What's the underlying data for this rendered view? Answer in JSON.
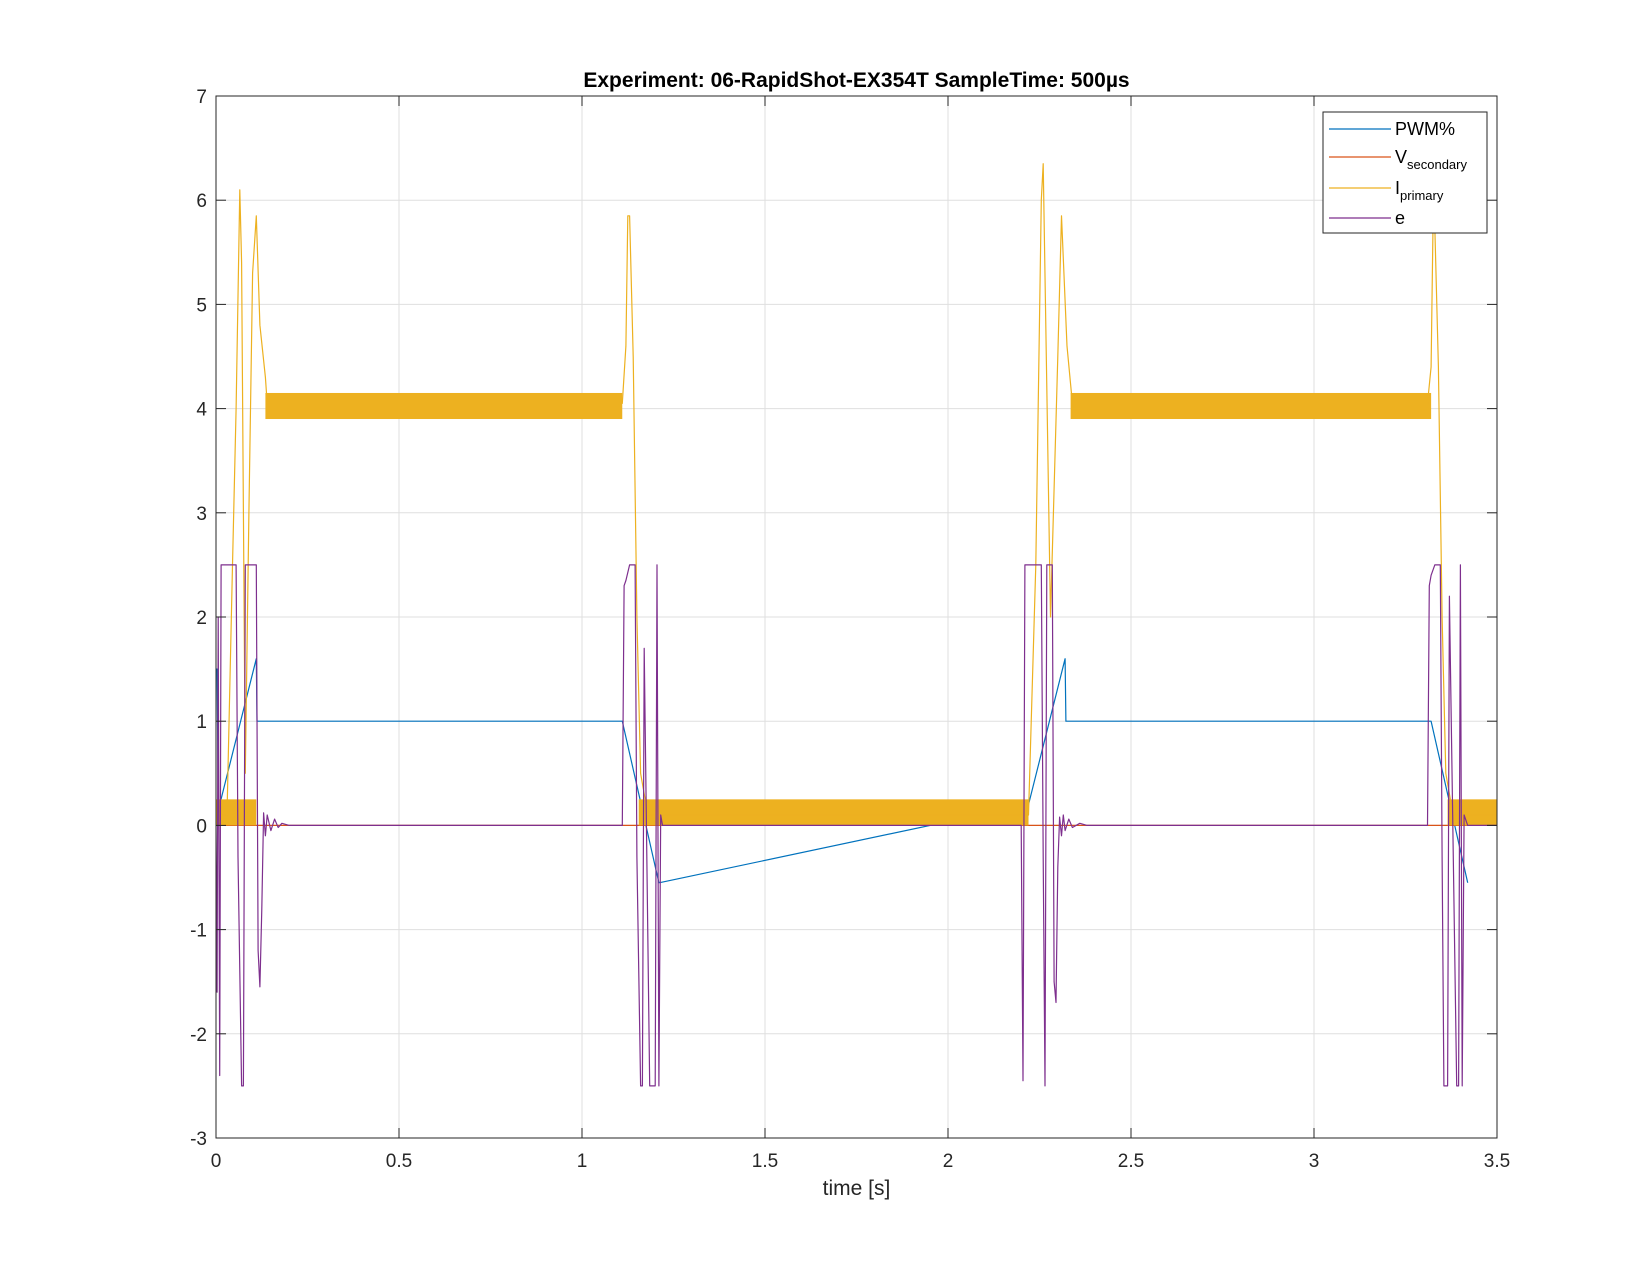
{
  "chart_data": {
    "type": "line",
    "title": "Experiment: 06-RapidShot-EX354T   SampleTime: 500µs",
    "xlabel": "time [s]",
    "ylabel": "",
    "xlim": [
      0,
      3.5
    ],
    "ylim": [
      -3,
      7
    ],
    "xticks": [
      0,
      0.5,
      1,
      1.5,
      2,
      2.5,
      3,
      3.5
    ],
    "xtick_labels": [
      "0",
      "0.5",
      "1",
      "1.5",
      "2",
      "2.5",
      "3",
      "3.5"
    ],
    "yticks": [
      -3,
      -2,
      -1,
      0,
      1,
      2,
      3,
      4,
      5,
      6,
      7
    ],
    "ytick_labels": [
      "-3",
      "-2",
      "-1",
      "0",
      "1",
      "2",
      "3",
      "4",
      "5",
      "6",
      "7"
    ],
    "grid": true,
    "legend_position": "top-right",
    "legend": [
      {
        "base": "PWM%",
        "sub": "",
        "color": "#0072BD"
      },
      {
        "base": "V",
        "sub": "secondary",
        "color": "#D95319"
      },
      {
        "base": "I",
        "sub": "primary",
        "color": "#EDB120"
      },
      {
        "base": "e",
        "sub": "",
        "color": "#7E2F8E"
      }
    ],
    "series": [
      {
        "name": "PWM%",
        "color": "#0072BD",
        "x": [
          0,
          0.003,
          0.006,
          0.01,
          0.11,
          0.112,
          1.11,
          1.21,
          1.212,
          2.22,
          2.32,
          2.322,
          3.32,
          3.42
        ],
        "y": [
          1.5,
          1.5,
          0.2,
          0.2,
          1.6,
          1.0,
          1.0,
          -0.55,
          -0.55,
          0.2,
          1.6,
          1.0,
          1.0,
          -0.55
        ]
      },
      {
        "name": "V_secondary",
        "color": "#D95319",
        "x": [
          0,
          3.5
        ],
        "y": [
          0,
          0
        ]
      },
      {
        "name": "I_primary",
        "color": "#EDB120",
        "x": [
          0,
          0.03,
          0.045,
          0.055,
          0.065,
          0.07,
          0.08,
          0.09,
          0.1,
          0.11,
          0.12,
          0.135,
          0.14,
          1.11,
          1.12,
          1.125,
          1.13,
          1.14,
          1.15,
          1.16,
          1.18,
          2.22,
          2.24,
          2.255,
          2.26,
          2.28,
          2.3,
          2.31,
          2.325,
          2.34,
          3.31,
          3.32,
          3.325,
          3.33,
          3.34,
          3.35,
          3.36,
          3.38,
          3.5
        ],
        "y": [
          0.1,
          0.1,
          2.5,
          4.0,
          6.1,
          5.4,
          0.5,
          3.0,
          5.3,
          5.85,
          4.8,
          4.3,
          4.05,
          4.05,
          4.6,
          5.85,
          5.85,
          4.5,
          2.0,
          0.5,
          0.1,
          0.1,
          2.5,
          6.0,
          6.35,
          2.0,
          4.5,
          5.85,
          4.6,
          4.05,
          4.05,
          4.4,
          5.75,
          5.75,
          4.4,
          2.0,
          0.5,
          0.1,
          0.1
        ],
        "noise_bands": [
          {
            "x0": 0.0,
            "x1": 0.11,
            "low": 0.0,
            "high": 0.25
          },
          {
            "x0": 0.135,
            "x1": 1.11,
            "low": 3.9,
            "high": 4.15
          },
          {
            "x0": 1.155,
            "x1": 2.22,
            "low": 0.0,
            "high": 0.25
          },
          {
            "x0": 2.335,
            "x1": 3.32,
            "low": 3.9,
            "high": 4.15
          },
          {
            "x0": 3.365,
            "x1": 3.5,
            "low": 0.0,
            "high": 0.25
          }
        ]
      },
      {
        "name": "e",
        "color": "#7E2F8E",
        "x": [
          0,
          0.003,
          0.006,
          0.01,
          0.014,
          0.055,
          0.06,
          0.07,
          0.075,
          0.08,
          0.085,
          0.11,
          0.115,
          0.12,
          0.125,
          0.13,
          0.135,
          0.14,
          0.15,
          0.16,
          0.17,
          0.18,
          0.2,
          1.11,
          1.115,
          1.12,
          1.13,
          1.145,
          1.15,
          1.16,
          1.165,
          1.17,
          1.185,
          1.19,
          1.2,
          1.205,
          1.21,
          1.215,
          1.22,
          2.2,
          2.205,
          2.21,
          2.215,
          2.255,
          2.26,
          2.265,
          2.27,
          2.285,
          2.29,
          2.295,
          2.3,
          2.305,
          2.31,
          2.315,
          2.32,
          2.33,
          2.34,
          2.36,
          2.38,
          2.4,
          3.31,
          3.315,
          3.32,
          3.33,
          3.345,
          3.35,
          3.355,
          3.365,
          3.37,
          3.39,
          3.395,
          3.4,
          3.405,
          3.41,
          3.42,
          3.5
        ],
        "y": [
          0,
          -1.6,
          2.0,
          -2.4,
          2.5,
          2.5,
          -0.3,
          -2.5,
          -2.5,
          2.5,
          2.5,
          2.5,
          -1.2,
          -1.55,
          -0.8,
          0.12,
          -0.1,
          0.1,
          -0.05,
          0.06,
          -0.02,
          0.02,
          0,
          0,
          2.3,
          2.35,
          2.5,
          2.5,
          -0.3,
          -2.5,
          -2.5,
          1.7,
          -2.5,
          -2.5,
          -2.5,
          2.5,
          -2.5,
          0.1,
          0,
          0,
          -2.45,
          2.5,
          2.5,
          2.5,
          -0.3,
          -2.5,
          2.5,
          2.5,
          -1.5,
          -1.7,
          -0.4,
          0.08,
          -0.1,
          0.1,
          -0.05,
          0.06,
          -0.02,
          0.02,
          0,
          0,
          0,
          2.3,
          2.4,
          2.5,
          2.5,
          -0.3,
          -2.5,
          -2.5,
          2.2,
          -2.5,
          -2.5,
          2.5,
          -2.5,
          0.1,
          0,
          0
        ]
      }
    ]
  }
}
